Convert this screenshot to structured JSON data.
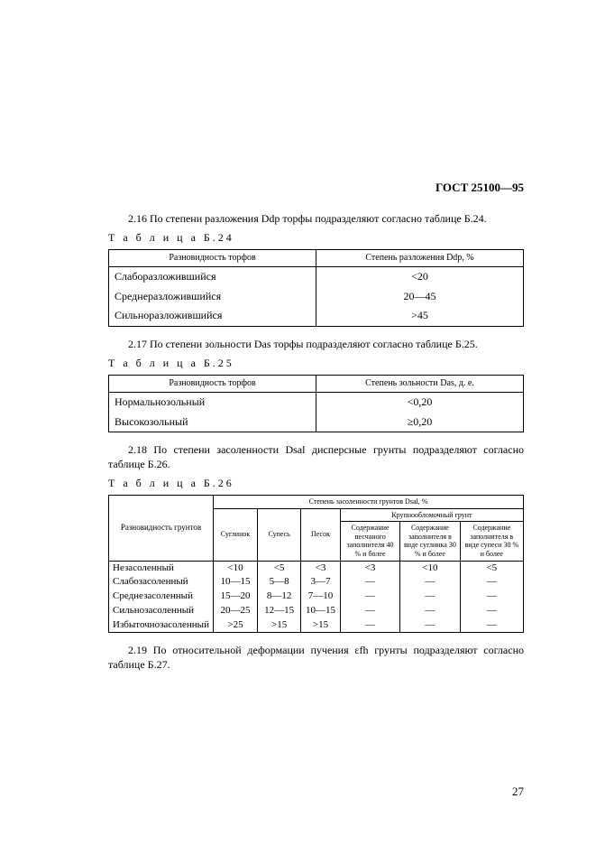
{
  "header": "ГОСТ 25100—95",
  "page_number": "27",
  "s216": {
    "para": "2.16 По степени разложения Ddp торфы подразделяют согласно таблице Б.24.",
    "caption": "Т а б л и ц а  Б.24",
    "h1": "Разновидность торфов",
    "h2": "Степень разложения Ddp, %",
    "rows": [
      {
        "a": "Слаборазложившийся",
        "b": "<20"
      },
      {
        "a": "Среднеразложившийся",
        "b": "20—45"
      },
      {
        "a": "Сильноразложившийся",
        "b": ">45"
      }
    ]
  },
  "s217": {
    "para": "2.17 По степени зольности Das торфы подразделяют согласно таблице Б.25.",
    "caption": "Т а б л и ц а  Б.25",
    "h1": "Разновидность торфов",
    "h2": "Степень зольности Das, д. е.",
    "rows": [
      {
        "a": "Нормальнозольный",
        "b": "<0,20"
      },
      {
        "a": "Высокозольный",
        "b": "≥0,20"
      }
    ]
  },
  "s218": {
    "para": "2.18 По степени засоленности Dsal дисперсные грунты подразделяют согласно таблице Б.26.",
    "caption": "Т а б л и ц а  Б.26",
    "h_main": "Разновидность грунтов",
    "h_top": "Степень засоленности грунтов Dsal, %",
    "h_krupno": "Крупнообломочный грунт",
    "h_cols": {
      "c1": "Суглинок",
      "c2": "Супесь",
      "c3": "Песок",
      "c4": "Содержание песчаного заполнителя 40 % и более",
      "c5": "Содержание заполнителя в виде суглинка 30 % и более",
      "c6": "Содержание заполнителя в виде супеси 30 % и более"
    },
    "rows": [
      {
        "a": "Незасоленный",
        "v": [
          "<10",
          "<5",
          "<3",
          "<3",
          "<10",
          "<5"
        ]
      },
      {
        "a": "Слабозасоленный",
        "v": [
          "10—15",
          "5—8",
          "3—7",
          "—",
          "—",
          "—"
        ]
      },
      {
        "a": "Среднезасоленный",
        "v": [
          "15—20",
          "8—12",
          "7—10",
          "—",
          "—",
          "—"
        ]
      },
      {
        "a": "Сильнозасоленный",
        "v": [
          "20—25",
          "12—15",
          "10—15",
          "—",
          "—",
          "—"
        ]
      },
      {
        "a": "Избыточнозасоленный",
        "v": [
          ">25",
          ">15",
          ">15",
          "—",
          "—",
          "—"
        ]
      }
    ]
  },
  "s219": {
    "para": "2.19 По относительной деформации пучения εfh грунты подразделяют согласно таблице Б.27."
  }
}
